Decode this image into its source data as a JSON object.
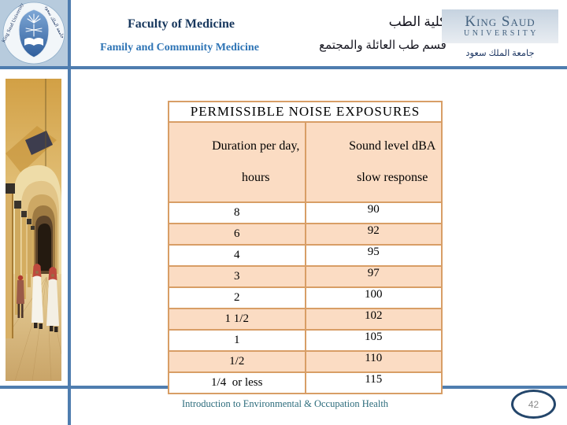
{
  "slide": {
    "header": {
      "faculty_en": "Faculty of Medicine",
      "department_en": "Family and Community Medicine",
      "faculty_ar": "كلية الطب",
      "department_ar": "قسم طب العائلة والمجتمع"
    },
    "university": {
      "name_line1": "King Saud",
      "name_line2": "UNIVERSITY",
      "name_ar": "جامعة الملك سعود",
      "seal_title": "King Saud University",
      "seal_title_ar": "جامعة الملك سعود"
    },
    "table": {
      "title": "PERMISSIBLE NOISE EXPOSURES",
      "columns": [
        {
          "line1": "Duration per day,",
          "line2": "hours"
        },
        {
          "line1": "Sound level dBA",
          "line2": "slow response"
        }
      ],
      "rows": [
        [
          "8",
          "90"
        ],
        [
          "6",
          "92"
        ],
        [
          "4",
          "95"
        ],
        [
          "3",
          "97"
        ],
        [
          "2",
          "100"
        ],
        [
          "1 1/2",
          "102"
        ],
        [
          "1",
          "105"
        ],
        [
          "1/2",
          "110"
        ],
        [
          "1/4  or less",
          "115"
        ]
      ]
    },
    "footer": {
      "course_title": "Introduction to Environmental & Occupation Health",
      "page_number": "42"
    },
    "colors": {
      "accent_line_blue": "#4f7daf",
      "table_border_tan": "#d89e66",
      "row_peach": "#fbdcc3",
      "faculty_navy": "#17375d",
      "department_blue": "#2e74b5",
      "footer_teal": "#2b6b7b",
      "badge_border_navy": "#24466b"
    }
  }
}
